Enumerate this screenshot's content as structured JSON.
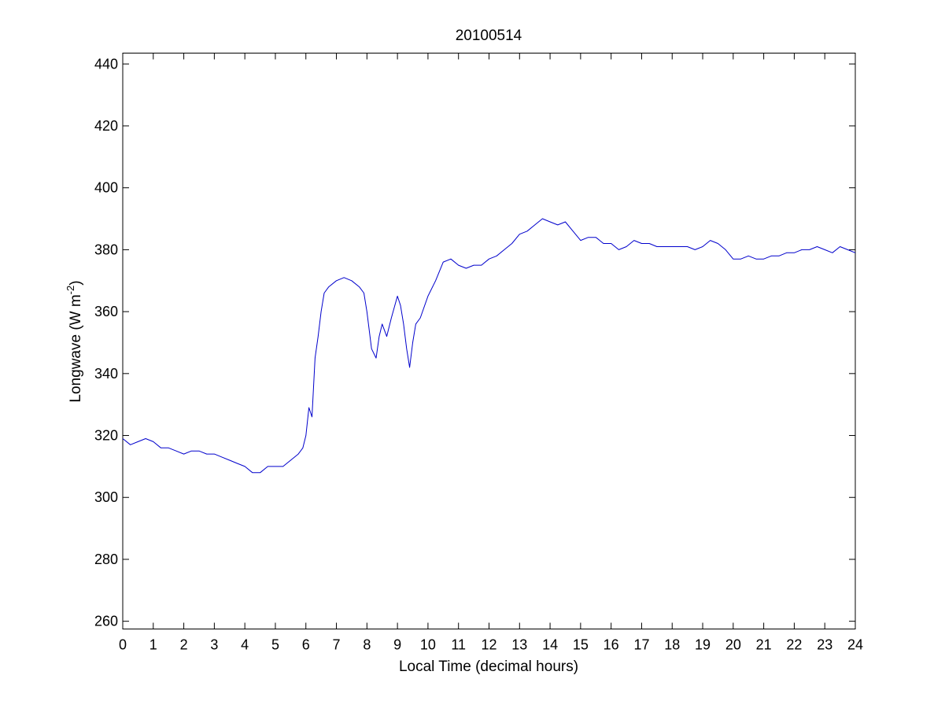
{
  "chart_data": {
    "type": "line",
    "title": "20100514",
    "xlabel": "Local Time (decimal hours)",
    "ylabel": {
      "main": "Longwave (W m",
      "superscript": "-2",
      "close": ")"
    },
    "xlim": [
      0,
      24
    ],
    "ylim": [
      257.5,
      443.5
    ],
    "xticks": [
      0,
      1,
      2,
      3,
      4,
      5,
      6,
      7,
      8,
      9,
      10,
      11,
      12,
      13,
      14,
      15,
      16,
      17,
      18,
      19,
      20,
      21,
      22,
      23,
      24
    ],
    "yticks": [
      260,
      280,
      300,
      320,
      340,
      360,
      380,
      400,
      420,
      440
    ],
    "grid": false,
    "line_color": "#0000cc",
    "series": [
      {
        "x": [
          0.0,
          0.25,
          0.5,
          0.75,
          1.0,
          1.25,
          1.5,
          1.75,
          2.0,
          2.25,
          2.5,
          2.75,
          3.0,
          3.25,
          3.5,
          3.75,
          4.0,
          4.25,
          4.5,
          4.75,
          5.0,
          5.25,
          5.5,
          5.75,
          5.9,
          6.0,
          6.1,
          6.2,
          6.3,
          6.4,
          6.5,
          6.6,
          6.75,
          7.0,
          7.25,
          7.5,
          7.75,
          7.9,
          8.0,
          8.15,
          8.3,
          8.4,
          8.5,
          8.65,
          8.8,
          9.0,
          9.1,
          9.2,
          9.3,
          9.4,
          9.5,
          9.6,
          9.75,
          10.0,
          10.25,
          10.5,
          10.75,
          11.0,
          11.25,
          11.5,
          11.75,
          12.0,
          12.25,
          12.5,
          12.75,
          13.0,
          13.25,
          13.5,
          13.75,
          14.0,
          14.25,
          14.5,
          14.75,
          15.0,
          15.25,
          15.5,
          15.75,
          16.0,
          16.25,
          16.5,
          16.75,
          17.0,
          17.25,
          17.5,
          17.75,
          18.0,
          18.25,
          18.5,
          18.75,
          19.0,
          19.25,
          19.5,
          19.75,
          20.0,
          20.25,
          20.5,
          20.75,
          21.0,
          21.25,
          21.5,
          21.75,
          22.0,
          22.25,
          22.5,
          22.75,
          23.0,
          23.25,
          23.5,
          23.75,
          24.0
        ],
        "y": [
          319,
          317,
          318,
          319,
          318,
          316,
          316,
          315,
          314,
          315,
          315,
          314,
          314,
          313,
          312,
          311,
          310,
          308,
          308,
          310,
          310,
          310,
          312,
          314,
          316,
          320,
          329,
          326,
          345,
          352,
          360,
          366,
          368,
          370,
          371,
          370,
          368,
          366,
          360,
          348,
          345,
          352,
          356,
          352,
          358,
          365,
          362,
          356,
          348,
          342,
          350,
          356,
          358,
          365,
          370,
          376,
          377,
          375,
          374,
          375,
          375,
          377,
          378,
          380,
          382,
          385,
          386,
          388,
          390,
          389,
          388,
          389,
          386,
          383,
          384,
          384,
          382,
          382,
          380,
          381,
          383,
          382,
          382,
          381,
          381,
          381,
          381,
          381,
          380,
          381,
          383,
          382,
          380,
          377,
          377,
          378,
          377,
          377,
          378,
          378,
          379,
          379,
          380,
          380,
          381,
          380,
          379,
          381,
          380,
          379
        ]
      }
    ]
  }
}
